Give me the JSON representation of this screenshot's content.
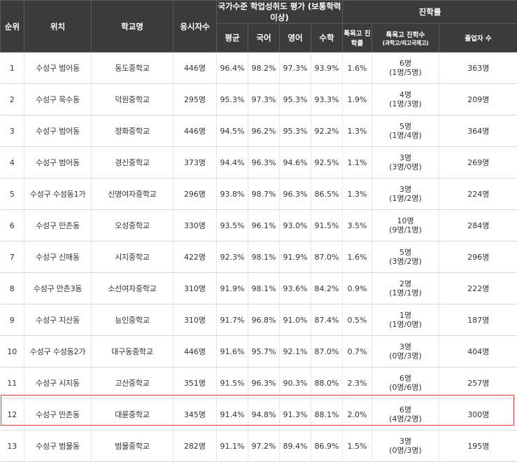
{
  "header": {
    "rank": "순위",
    "location": "위치",
    "school": "학교명",
    "examinees": "응시자수",
    "achievement_group": "국가수준 학업성취도 평가 (보통학력이상)",
    "avg": "평균",
    "korean": "국어",
    "english": "영어",
    "math": "수학",
    "advancement_group": "진학률",
    "special_rate": "특목고 진학률",
    "special_count": "특목고 진학수",
    "special_count_sub": "(과학고/외고국제고)",
    "graduates": "졸업자 수"
  },
  "rows": [
    {
      "rank": "1",
      "location": "수성구 범어동",
      "school": "동도중학교",
      "examinees": "446명",
      "avg": "96.4%",
      "korean": "98.2%",
      "english": "97.3%",
      "math": "93.9%",
      "special_rate": "1.6%",
      "special_total": "6명",
      "special_split": "(1명/5명)",
      "graduates": "363명"
    },
    {
      "rank": "2",
      "location": "수성구 욱수동",
      "school": "덕원중학교",
      "examinees": "295명",
      "avg": "95.3%",
      "korean": "97.3%",
      "english": "95.3%",
      "math": "93.3%",
      "special_rate": "1.9%",
      "special_total": "4명",
      "special_split": "(1명/3명)",
      "graduates": "209명"
    },
    {
      "rank": "3",
      "location": "수성구 범어동",
      "school": "정화중학교",
      "examinees": "446명",
      "avg": "94.5%",
      "korean": "96.2%",
      "english": "95.3%",
      "math": "92.2%",
      "special_rate": "1.3%",
      "special_total": "5명",
      "special_split": "(1명/4명)",
      "graduates": "364명"
    },
    {
      "rank": "4",
      "location": "수성구 범어동",
      "school": "경신중학교",
      "examinees": "373명",
      "avg": "94.4%",
      "korean": "96.3%",
      "english": "94.6%",
      "math": "92.5%",
      "special_rate": "1.1%",
      "special_total": "3명",
      "special_split": "(3명/0명)",
      "graduates": "269명"
    },
    {
      "rank": "5",
      "location": "수성구 수성동1가",
      "school": "신명여자중학교",
      "examinees": "296명",
      "avg": "93.8%",
      "korean": "98.7%",
      "english": "96.3%",
      "math": "86.5%",
      "special_rate": "1.3%",
      "special_total": "3명",
      "special_split": "(1명/2명)",
      "graduates": "224명"
    },
    {
      "rank": "6",
      "location": "수성구 만촌동",
      "school": "오성중학교",
      "examinees": "330명",
      "avg": "93.5%",
      "korean": "96.1%",
      "english": "93.0%",
      "math": "91.5%",
      "special_rate": "3.5%",
      "special_total": "10명",
      "special_split": "(9명/1명)",
      "graduates": "284명"
    },
    {
      "rank": "7",
      "location": "수성구 신매동",
      "school": "시지중학교",
      "examinees": "422명",
      "avg": "92.3%",
      "korean": "98.1%",
      "english": "91.9%",
      "math": "87.0%",
      "special_rate": "1.6%",
      "special_total": "5명",
      "special_split": "(3명/2명)",
      "graduates": "296명"
    },
    {
      "rank": "8",
      "location": "수성구 만촌3동",
      "school": "소선여자중학교",
      "examinees": "310명",
      "avg": "91.9%",
      "korean": "98.1%",
      "english": "93.6%",
      "math": "84.2%",
      "special_rate": "0.9%",
      "special_total": "2명",
      "special_split": "(1명/1명)",
      "graduates": "222명"
    },
    {
      "rank": "9",
      "location": "수성구 지산동",
      "school": "능인중학교",
      "examinees": "310명",
      "avg": "91.7%",
      "korean": "96.8%",
      "english": "91.0%",
      "math": "87.4%",
      "special_rate": "0.5%",
      "special_total": "1명",
      "special_split": "(1명/0명)",
      "graduates": "187명"
    },
    {
      "rank": "10",
      "location": "수성구 수성동2가",
      "school": "대구동중학교",
      "examinees": "446명",
      "avg": "91.6%",
      "korean": "95.7%",
      "english": "92.1%",
      "math": "87.0%",
      "special_rate": "0.7%",
      "special_total": "3명",
      "special_split": "(0명/3명)",
      "graduates": "404명"
    },
    {
      "rank": "11",
      "location": "수성구 시지동",
      "school": "고산중학교",
      "examinees": "351명",
      "avg": "91.5%",
      "korean": "96.3%",
      "english": "90.3%",
      "math": "88.0%",
      "special_rate": "2.3%",
      "special_total": "6명",
      "special_split": "(0명/6명)",
      "graduates": "257명"
    },
    {
      "rank": "12",
      "location": "수성구 만촌동",
      "school": "대륜중학교",
      "examinees": "345명",
      "avg": "91.4%",
      "korean": "94.8%",
      "english": "91.3%",
      "math": "88.1%",
      "special_rate": "2.0%",
      "special_total": "6명",
      "special_split": "(4명/2명)",
      "graduates": "300명"
    },
    {
      "rank": "13",
      "location": "수성구 범물동",
      "school": "범물중학교",
      "examinees": "282명",
      "avg": "91.1%",
      "korean": "97.2%",
      "english": "89.4%",
      "math": "86.9%",
      "special_rate": "1.5%",
      "special_total": "3명",
      "special_split": "(0명/3명)",
      "graduates": "195명"
    }
  ],
  "highlight_color": "#e53935",
  "header_bg": "#3b3b3b"
}
